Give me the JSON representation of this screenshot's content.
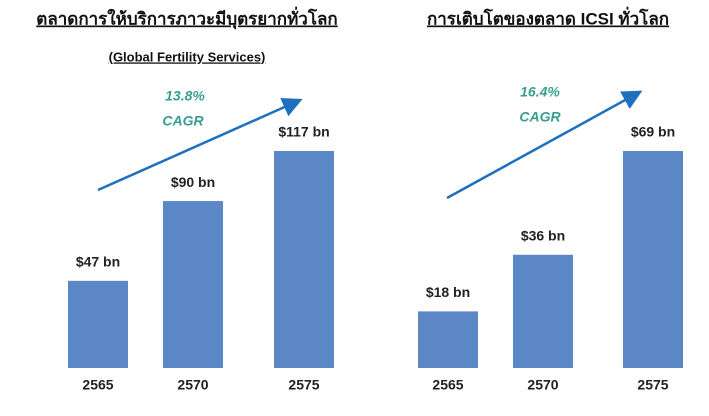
{
  "chart_data": [
    {
      "type": "bar",
      "title": "ตลาดการให้บริการภาวะมีบุตรยากทั่วโลก",
      "subtitle": "(Global Fertility Services)",
      "annotations": [
        "13.8%",
        "CAGR"
      ],
      "categories": [
        "2565",
        "2570",
        "2575"
      ],
      "values": [
        47,
        90,
        117
      ],
      "value_labels": [
        "$47 bn",
        "$90 bn",
        "$117 bn"
      ],
      "color": "#5b87c7"
    },
    {
      "type": "bar",
      "title": "การเติบโตของตลาด ICSI ทั่วโลก",
      "annotations": [
        "16.4%",
        "CAGR"
      ],
      "categories": [
        "2565",
        "2570",
        "2575"
      ],
      "values": [
        18,
        36,
        69
      ],
      "value_labels": [
        "$18 bn",
        "$36 bn",
        "$69 bn"
      ],
      "color": "#5b87c7"
    }
  ]
}
